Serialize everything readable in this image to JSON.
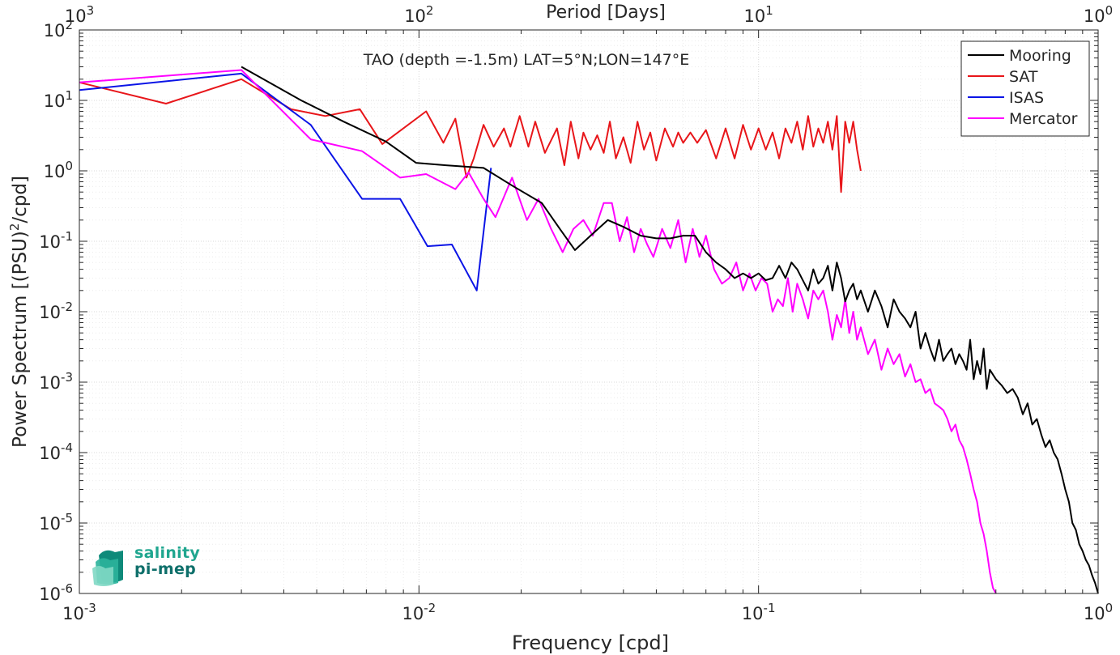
{
  "chart_data": {
    "type": "line",
    "title": "TAO (depth =-1.5m) LAT=5°N;LON=147°E",
    "xlabel": "Frequency [cpd]",
    "ylabel": "Power Spectrum [(PSU)²/cpd]",
    "top_axis_label": "Period [Days]",
    "xscale": "log",
    "yscale": "log",
    "xlim": [
      0.001,
      1
    ],
    "ylim": [
      1e-06,
      100
    ],
    "grid": true,
    "legend_position": "top-right",
    "x_ticks": [
      {
        "value": 0.001,
        "base": "10",
        "exp": "-3"
      },
      {
        "value": 0.01,
        "base": "10",
        "exp": "-2"
      },
      {
        "value": 0.1,
        "base": "10",
        "exp": "-1"
      },
      {
        "value": 1,
        "base": "10",
        "exp": "0"
      }
    ],
    "y_ticks": [
      {
        "value": 1e-06,
        "base": "10",
        "exp": "-6"
      },
      {
        "value": 1e-05,
        "base": "10",
        "exp": "-5"
      },
      {
        "value": 0.0001,
        "base": "10",
        "exp": "-4"
      },
      {
        "value": 0.001,
        "base": "10",
        "exp": "-3"
      },
      {
        "value": 0.01,
        "base": "10",
        "exp": "-2"
      },
      {
        "value": 0.1,
        "base": "10",
        "exp": "-1"
      },
      {
        "value": 1,
        "base": "10",
        "exp": "0"
      },
      {
        "value": 10,
        "base": "10",
        "exp": "1"
      },
      {
        "value": 100,
        "base": "10",
        "exp": "2"
      }
    ],
    "top_ticks": [
      {
        "value": 1000,
        "base": "10",
        "exp": "3"
      },
      {
        "value": 100,
        "base": "10",
        "exp": "2"
      },
      {
        "value": 10,
        "base": "10",
        "exp": "1"
      },
      {
        "value": 1,
        "base": "10",
        "exp": "0"
      }
    ],
    "series": [
      {
        "name": "Mooring",
        "color": "#000000",
        "x": [
          0.003,
          0.0045,
          0.006,
          0.008,
          0.0098,
          0.012,
          0.0155,
          0.019,
          0.023,
          0.026,
          0.0288,
          0.032,
          0.036,
          0.04,
          0.045,
          0.05,
          0.055,
          0.06,
          0.065,
          0.07,
          0.075,
          0.08,
          0.085,
          0.09,
          0.095,
          0.1,
          0.105,
          0.11,
          0.115,
          0.12,
          0.125,
          0.13,
          0.135,
          0.14,
          0.145,
          0.15,
          0.155,
          0.16,
          0.165,
          0.17,
          0.175,
          0.18,
          0.185,
          0.19,
          0.195,
          0.2,
          0.21,
          0.22,
          0.23,
          0.24,
          0.25,
          0.26,
          0.27,
          0.28,
          0.29,
          0.3,
          0.31,
          0.32,
          0.33,
          0.34,
          0.35,
          0.36,
          0.37,
          0.38,
          0.39,
          0.4,
          0.41,
          0.42,
          0.43,
          0.44,
          0.45,
          0.46,
          0.47,
          0.48,
          0.5,
          0.52,
          0.54,
          0.56,
          0.58,
          0.6,
          0.62,
          0.64,
          0.66,
          0.68,
          0.7,
          0.72,
          0.74,
          0.76,
          0.78,
          0.8,
          0.82,
          0.84,
          0.86,
          0.88,
          0.9,
          0.92,
          0.94,
          0.96,
          0.98,
          1.0
        ],
        "y": [
          30,
          10,
          5,
          2.6,
          1.3,
          1.2,
          1.1,
          0.6,
          0.35,
          0.15,
          0.075,
          0.12,
          0.2,
          0.16,
          0.12,
          0.11,
          0.11,
          0.12,
          0.12,
          0.07,
          0.05,
          0.04,
          0.03,
          0.035,
          0.03,
          0.035,
          0.028,
          0.03,
          0.045,
          0.03,
          0.05,
          0.04,
          0.028,
          0.02,
          0.04,
          0.025,
          0.03,
          0.045,
          0.02,
          0.05,
          0.03,
          0.014,
          0.02,
          0.025,
          0.015,
          0.02,
          0.01,
          0.02,
          0.012,
          0.006,
          0.015,
          0.01,
          0.008,
          0.006,
          0.01,
          0.003,
          0.005,
          0.003,
          0.002,
          0.004,
          0.002,
          0.0025,
          0.003,
          0.0018,
          0.0025,
          0.002,
          0.0015,
          0.004,
          0.0011,
          0.002,
          0.0013,
          0.003,
          0.0008,
          0.0015,
          0.0011,
          0.0009,
          0.0007,
          0.0008,
          0.0006,
          0.00035,
          0.0005,
          0.00025,
          0.0003,
          0.00018,
          0.00012,
          0.00015,
          0.0001,
          8e-05,
          5e-05,
          3e-05,
          2e-05,
          1e-05,
          8e-06,
          5e-06,
          4e-06,
          3e-06,
          2.5e-06,
          1.8e-06,
          1.4e-06,
          1e-06
        ]
      },
      {
        "name": "SAT",
        "color": "#e8161a",
        "x": [
          0.001,
          0.0018,
          0.003,
          0.0042,
          0.0053,
          0.0067,
          0.0078,
          0.0105,
          0.0118,
          0.0128,
          0.0138,
          0.0145,
          0.0155,
          0.0166,
          0.0178,
          0.0186,
          0.0198,
          0.021,
          0.022,
          0.0235,
          0.0255,
          0.0268,
          0.028,
          0.0295,
          0.0305,
          0.032,
          0.0335,
          0.035,
          0.0365,
          0.038,
          0.04,
          0.042,
          0.044,
          0.046,
          0.048,
          0.05,
          0.053,
          0.056,
          0.058,
          0.06,
          0.063,
          0.066,
          0.07,
          0.075,
          0.08,
          0.085,
          0.09,
          0.095,
          0.1,
          0.105,
          0.11,
          0.115,
          0.12,
          0.125,
          0.13,
          0.135,
          0.14,
          0.145,
          0.15,
          0.155,
          0.16,
          0.165,
          0.17,
          0.175,
          0.18,
          0.185,
          0.19,
          0.195,
          0.2
        ],
        "y": [
          18,
          9,
          20,
          7.5,
          6,
          7.5,
          2.4,
          7,
          2.5,
          5.5,
          0.8,
          1.5,
          4.5,
          2.2,
          4,
          2.2,
          6,
          2.2,
          5,
          1.8,
          4,
          1.2,
          5,
          1.5,
          3.5,
          2,
          3.2,
          1.8,
          5,
          1.5,
          3,
          1.3,
          5,
          2,
          3.5,
          1.4,
          4,
          2.2,
          3.5,
          2.5,
          3.5,
          2.5,
          3.8,
          1.5,
          4,
          1.5,
          4.5,
          2,
          4,
          2,
          3.5,
          1.5,
          4,
          2.5,
          5,
          2,
          6,
          2.2,
          4,
          2.5,
          5,
          2,
          6,
          0.5,
          5,
          2.5,
          5,
          2,
          1.0
        ]
      },
      {
        "name": "ISAS",
        "color": "#0b14e6",
        "x": [
          0.001,
          0.003,
          0.0048,
          0.0068,
          0.0088,
          0.0106,
          0.0125,
          0.0148,
          0.0163
        ],
        "y": [
          14,
          24,
          4.5,
          0.4,
          0.4,
          0.085,
          0.09,
          0.02,
          1.1
        ]
      },
      {
        "name": "Mercator",
        "color": "#ff00ff",
        "x": [
          0.001,
          0.003,
          0.0048,
          0.0068,
          0.0088,
          0.0105,
          0.0128,
          0.014,
          0.0155,
          0.0168,
          0.0188,
          0.0208,
          0.0225,
          0.0245,
          0.0265,
          0.0285,
          0.0305,
          0.0325,
          0.035,
          0.037,
          0.039,
          0.041,
          0.043,
          0.045,
          0.047,
          0.049,
          0.052,
          0.055,
          0.058,
          0.061,
          0.064,
          0.067,
          0.07,
          0.074,
          0.078,
          0.082,
          0.086,
          0.09,
          0.094,
          0.098,
          0.102,
          0.106,
          0.11,
          0.114,
          0.118,
          0.122,
          0.126,
          0.13,
          0.135,
          0.14,
          0.145,
          0.15,
          0.155,
          0.16,
          0.165,
          0.17,
          0.175,
          0.18,
          0.185,
          0.19,
          0.195,
          0.2,
          0.21,
          0.22,
          0.23,
          0.24,
          0.25,
          0.26,
          0.27,
          0.28,
          0.29,
          0.3,
          0.31,
          0.32,
          0.33,
          0.34,
          0.35,
          0.36,
          0.37,
          0.38,
          0.39,
          0.4,
          0.41,
          0.42,
          0.43,
          0.44,
          0.45,
          0.46,
          0.47,
          0.48,
          0.49,
          0.5
        ],
        "y": [
          18,
          27,
          2.8,
          1.9,
          0.8,
          0.9,
          0.55,
          0.95,
          0.4,
          0.22,
          0.8,
          0.2,
          0.4,
          0.15,
          0.07,
          0.15,
          0.2,
          0.12,
          0.35,
          0.35,
          0.1,
          0.22,
          0.07,
          0.15,
          0.09,
          0.06,
          0.15,
          0.08,
          0.2,
          0.05,
          0.15,
          0.06,
          0.12,
          0.04,
          0.025,
          0.03,
          0.05,
          0.02,
          0.035,
          0.02,
          0.03,
          0.025,
          0.01,
          0.015,
          0.012,
          0.03,
          0.01,
          0.025,
          0.015,
          0.008,
          0.02,
          0.015,
          0.02,
          0.01,
          0.004,
          0.009,
          0.006,
          0.015,
          0.005,
          0.01,
          0.004,
          0.006,
          0.0025,
          0.004,
          0.0015,
          0.003,
          0.0018,
          0.0025,
          0.0012,
          0.0018,
          0.001,
          0.0011,
          0.0007,
          0.0008,
          0.0005,
          0.00045,
          0.0004,
          0.0003,
          0.0002,
          0.00025,
          0.00015,
          0.00012,
          8e-05,
          5e-05,
          3e-05,
          2e-05,
          1e-05,
          7e-06,
          4e-06,
          2e-06,
          1.2e-06,
          1e-06
        ]
      }
    ]
  },
  "logo": {
    "line1": "salinity",
    "line2": "pi-mep"
  }
}
